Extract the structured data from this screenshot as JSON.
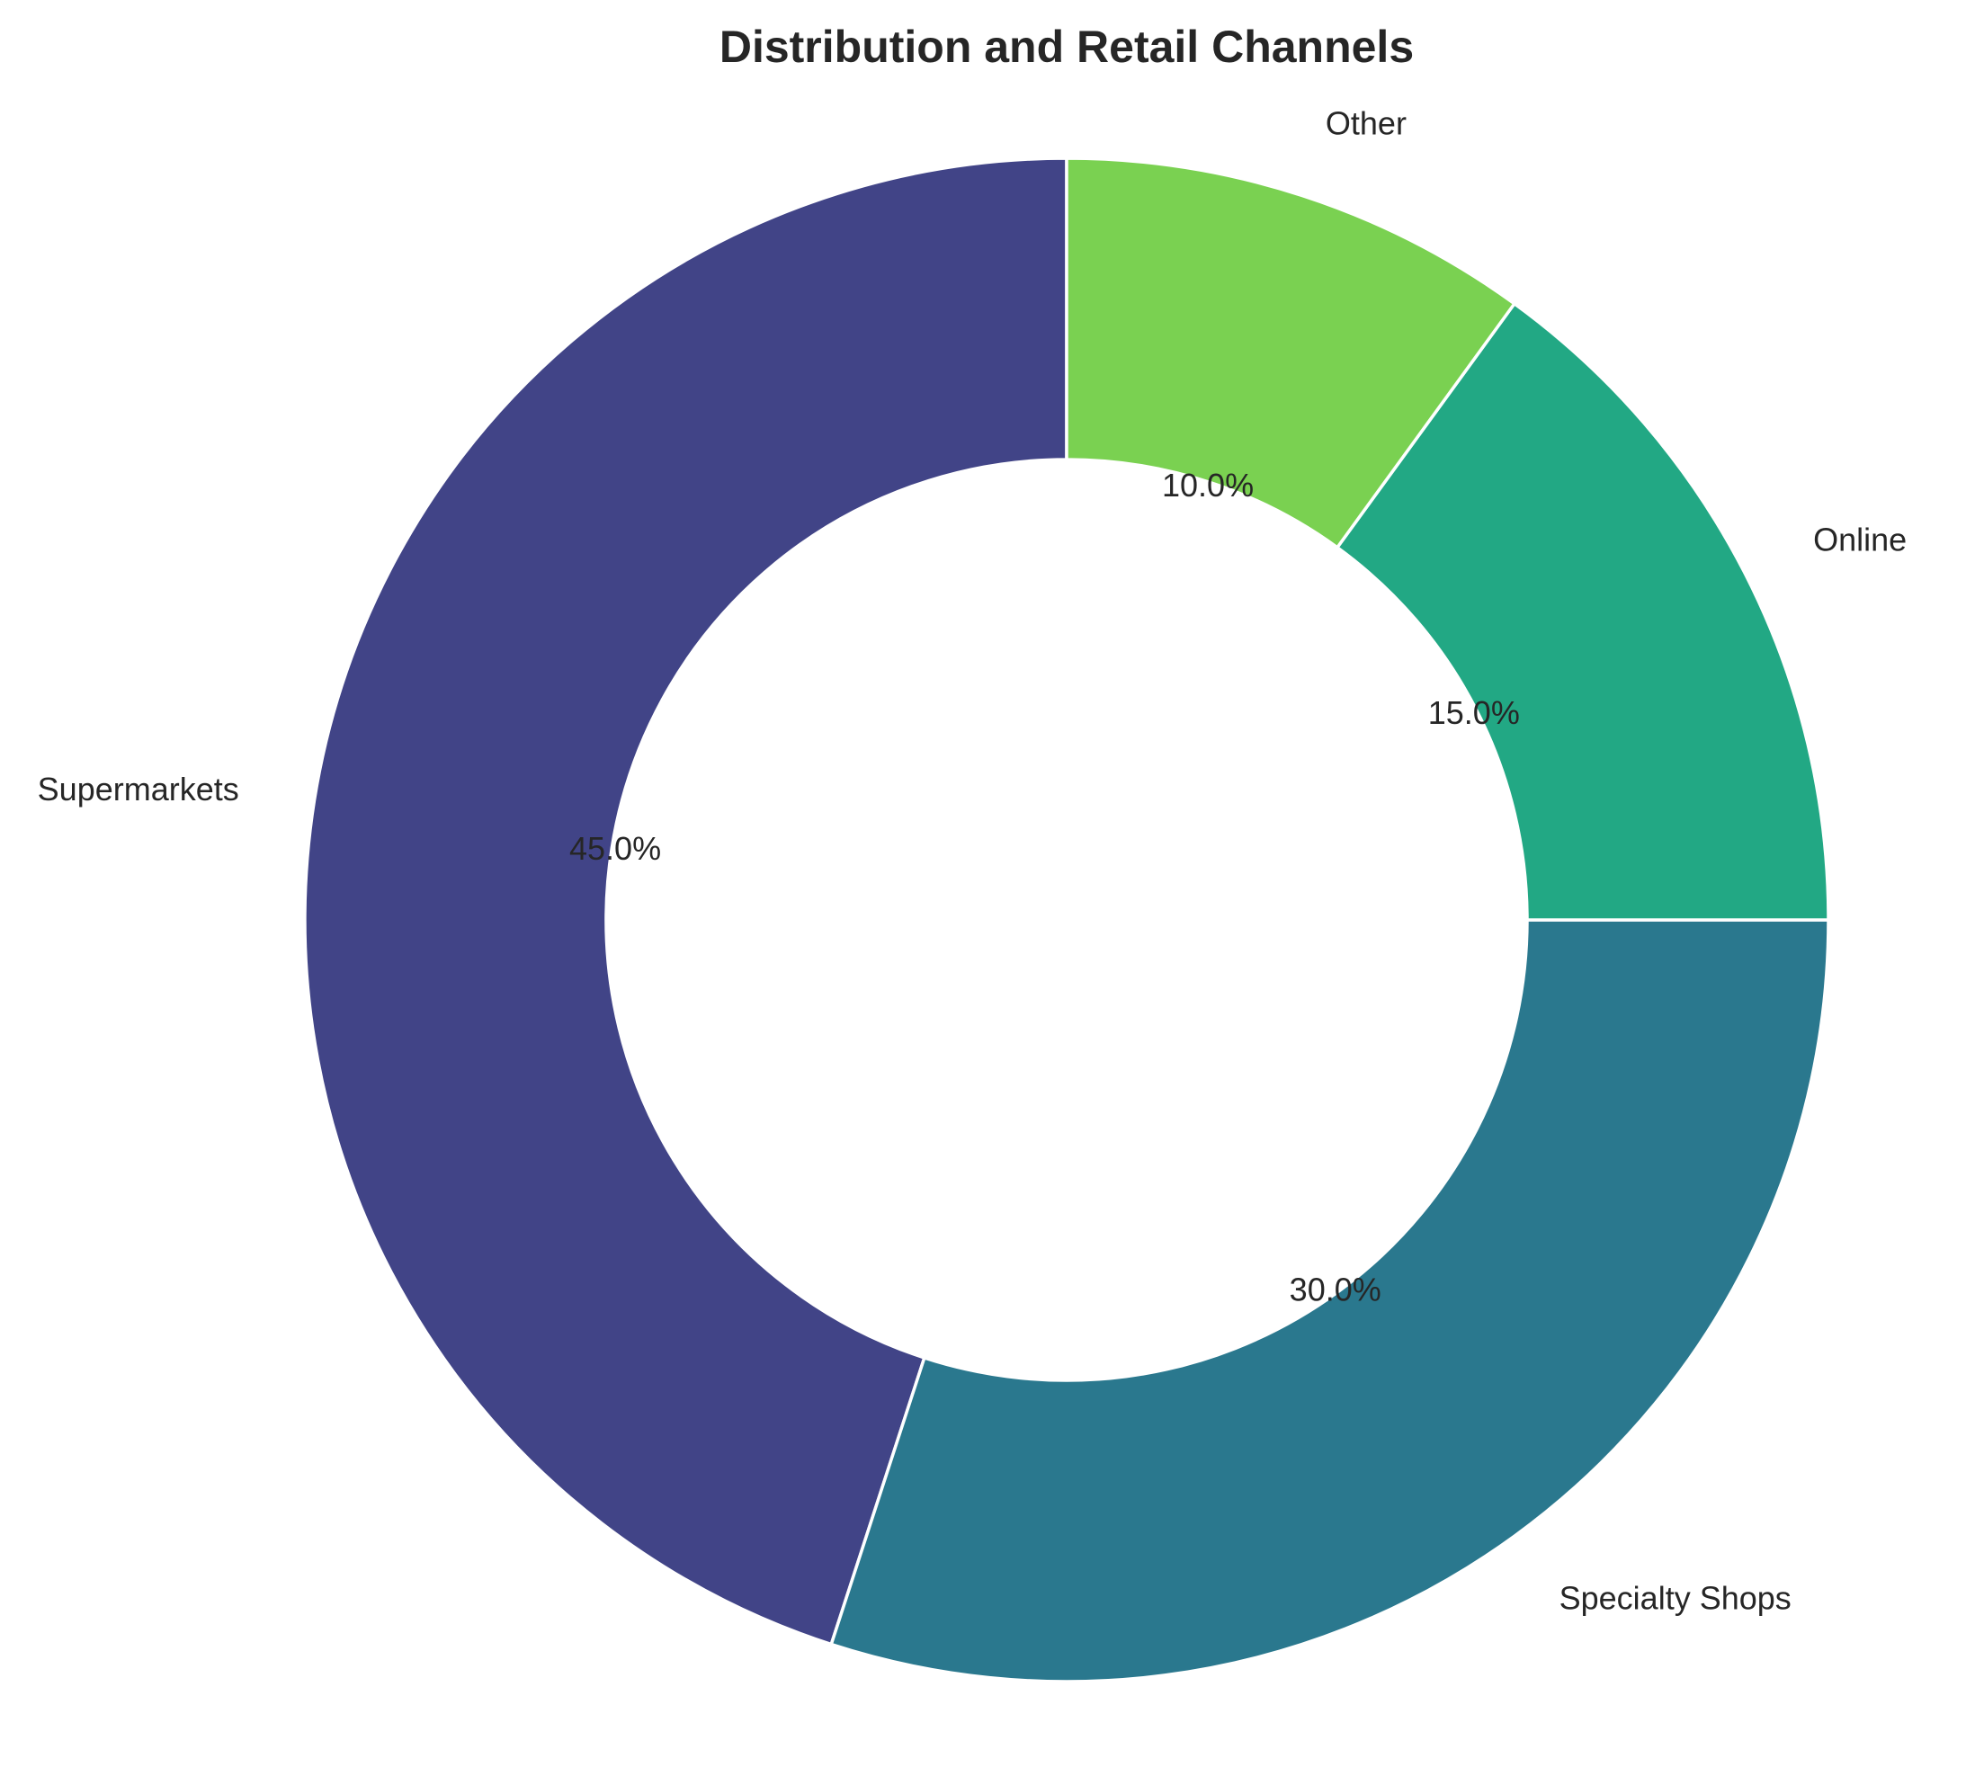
{
  "chart_data": {
    "type": "pie",
    "style": "donut",
    "title": "Distribution and Retail Channels",
    "start_angle_deg": 90,
    "direction": "counterclockwise",
    "slices": [
      {
        "label": "Supermarkets",
        "value": 45.0,
        "pct_label": "45.0%",
        "color": "#414487"
      },
      {
        "label": "Specialty Shops",
        "value": 30.0,
        "pct_label": "30.0%",
        "color": "#2a788e"
      },
      {
        "label": "Online",
        "value": 15.0,
        "pct_label": "15.0%",
        "color": "#22a884"
      },
      {
        "label": "Other",
        "value": 10.0,
        "pct_label": "10.0%",
        "color": "#7ad151"
      }
    ]
  }
}
